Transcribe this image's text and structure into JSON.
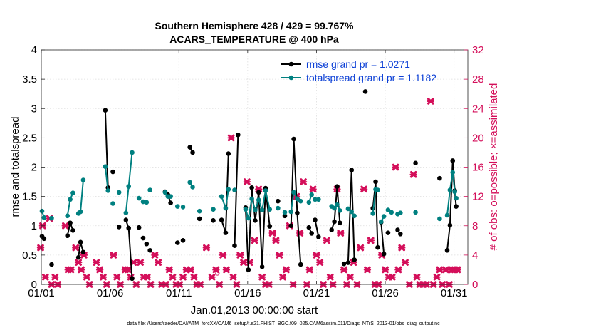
{
  "chart_data": {
    "type": "line",
    "title": "Southern Hemisphere 428 / 429 = 99.767%",
    "subtitle": "ACARS_TEMPERATURE @ 400 hPa",
    "xlabel": "Jan.01,2013 00:00:00 start",
    "ylabel_left": "rmse and totalspread",
    "ylabel_right": "# of obs: o=possible; ×=assimilated",
    "xlim": [
      1,
      32
    ],
    "ylim_left": [
      0,
      4
    ],
    "ylim_right": [
      0,
      32
    ],
    "x_ticks": [
      1,
      6,
      11,
      16,
      21,
      26,
      31
    ],
    "x_tick_labels": [
      "01/01",
      "01/06",
      "01/11",
      "01/16",
      "01/21",
      "01/26",
      "01/31"
    ],
    "y_ticks_left": [
      0,
      0.5,
      1,
      1.5,
      2,
      2.5,
      3,
      3.5,
      4
    ],
    "y_tick_labels_left": [
      "0",
      "0.5",
      "1",
      "1.5",
      "2",
      "2.5",
      "3",
      "3.5",
      "4"
    ],
    "y_ticks_right": [
      0,
      4,
      8,
      12,
      16,
      20,
      24,
      28,
      32
    ],
    "y_tick_labels_right": [
      "0",
      "4",
      "8",
      "12",
      "16",
      "20",
      "24",
      "28",
      "32"
    ],
    "colors": {
      "rmse": "#000000",
      "spread": "#008080",
      "obs": "#d40f5a",
      "legend_text": "#0b3fd6"
    },
    "series": [
      {
        "name": "rmse grand pr = 1.0271",
        "segments": [
          [
            [
              1.05,
              0.82
            ],
            [
              1.2,
              0.78
            ]
          ],
          [
            [
              1.75,
              0.34
            ]
          ],
          [
            [
              2.9,
              0.83
            ],
            [
              3.1,
              1.05
            ],
            [
              3.3,
              0.92
            ]
          ],
          [
            [
              3.7,
              0.46
            ],
            [
              3.85,
              0.72
            ],
            [
              4.05,
              0.55
            ]
          ],
          [
            [
              5.65,
              2.97
            ],
            [
              5.85,
              1.65
            ]
          ],
          [
            [
              6.2,
              1.92
            ]
          ],
          [
            [
              6.65,
              0.98
            ]
          ],
          [
            [
              7.15,
              1.1
            ],
            [
              7.35,
              0.96
            ],
            [
              7.6,
              0.1
            ]
          ],
          [
            [
              8.1,
              0.97
            ]
          ],
          [
            [
              8.4,
              0.79
            ]
          ],
          [
            [
              8.65,
              0.69
            ]
          ],
          [
            [
              8.9,
              0.58
            ]
          ],
          [
            [
              10.0,
              1.58
            ],
            [
              10.2,
              1.53
            ],
            [
              10.4,
              1.39
            ]
          ],
          [
            [
              10.9,
              0.71
            ]
          ],
          [
            [
              11.3,
              0.75
            ]
          ],
          [
            [
              11.8,
              2.34
            ],
            [
              12.0,
              2.25
            ]
          ],
          [
            [
              12.5,
              1.12
            ]
          ],
          [
            [
              13.5,
              1.09
            ]
          ],
          [
            [
              14.1,
              1.1
            ],
            [
              14.4,
              0.88
            ],
            [
              14.6,
              2.23
            ]
          ],
          [
            [
              15.05,
              0.66
            ],
            [
              15.3,
              2.55
            ]
          ],
          [
            [
              15.85,
              1.31
            ],
            [
              16.05,
              0.25
            ],
            [
              16.3,
              1.65
            ],
            [
              16.55,
              1.09
            ],
            [
              16.8,
              1.57
            ],
            [
              17.05,
              0.3
            ],
            [
              17.3,
              1.64
            ],
            [
              17.6,
              0.99
            ]
          ],
          [
            [
              18.2,
              1.42
            ]
          ],
          [
            [
              18.7,
              1.17
            ]
          ],
          [
            [
              19.15,
              1.0
            ],
            [
              19.35,
              2.48
            ],
            [
              19.6,
              1.22
            ],
            [
              19.85,
              0.34
            ]
          ],
          [
            [
              20.45,
              0.97
            ],
            [
              20.65,
              0.87
            ]
          ],
          [
            [
              20.9,
              1.1
            ],
            [
              21.15,
              0.81
            ]
          ],
          [
            [
              22.1,
              0.93
            ],
            [
              22.3,
              1.07
            ],
            [
              22.5,
              1.67
            ],
            [
              22.7,
              1.05
            ]
          ],
          [
            [
              23.0,
              0.35
            ]
          ],
          [
            [
              23.3,
              0.37
            ],
            [
              23.55,
              1.95
            ],
            [
              23.75,
              0.42
            ]
          ],
          [
            [
              24.55,
              3.29
            ]
          ],
          [
            [
              25.1,
              1.3
            ],
            [
              25.3,
              1.75
            ],
            [
              25.45,
              0.63
            ]
          ],
          [
            [
              25.7,
              1.06
            ],
            [
              25.9,
              0.52
            ]
          ],
          [
            [
              26.2,
              0.88
            ]
          ],
          [
            [
              26.9,
              0.93
            ],
            [
              27.1,
              0.86
            ]
          ],
          [
            [
              28.2,
              2.07
            ]
          ],
          [
            [
              29.95,
              1.81
            ]
          ],
          [
            [
              30.5,
              0.58
            ],
            [
              30.7,
              1.01
            ],
            [
              30.9,
              2.11
            ],
            [
              31.05,
              1.6
            ],
            [
              31.15,
              1.33
            ]
          ]
        ]
      },
      {
        "name": "totalspread grand pr = 1.1182",
        "segments": [
          [
            [
              1.05,
              1.25
            ],
            [
              1.2,
              1.14
            ]
          ],
          [
            [
              1.75,
              1.13
            ]
          ],
          [
            [
              2.9,
              1.17
            ],
            [
              3.1,
              1.45
            ],
            [
              3.3,
              1.56
            ]
          ],
          [
            [
              3.7,
              1.21
            ],
            [
              3.85,
              1.24
            ],
            [
              4.05,
              1.78
            ]
          ],
          [
            [
              5.65,
              2.01
            ],
            [
              5.85,
              1.6
            ]
          ],
          [
            [
              6.2,
              1.38
            ]
          ],
          [
            [
              6.65,
              1.57
            ]
          ],
          [
            [
              7.15,
              1.22
            ],
            [
              7.35,
              1.67
            ],
            [
              7.6,
              2.25
            ]
          ],
          [
            [
              8.1,
              1.47
            ]
          ],
          [
            [
              8.4,
              1.41
            ]
          ],
          [
            [
              8.65,
              1.4
            ]
          ],
          [
            [
              8.9,
              1.61
            ]
          ],
          [
            [
              10.0,
              1.57
            ],
            [
              10.2,
              1.5
            ],
            [
              10.4,
              1.5
            ]
          ],
          [
            [
              10.9,
              1.33
            ]
          ],
          [
            [
              11.3,
              1.32
            ]
          ],
          [
            [
              11.8,
              1.74
            ],
            [
              12.0,
              1.66
            ]
          ],
          [
            [
              12.5,
              1.25
            ]
          ],
          [
            [
              13.5,
              1.28
            ]
          ],
          [
            [
              14.1,
              1.5
            ],
            [
              14.4,
              1.3
            ],
            [
              14.6,
              1.62
            ]
          ],
          [
            [
              15.05,
              1.61
            ]
          ],
          [
            [
              15.85,
              1.28
            ],
            [
              16.05,
              1.13
            ],
            [
              16.3,
              1.46
            ],
            [
              16.55,
              1.27
            ],
            [
              16.8,
              1.44
            ],
            [
              17.05,
              1.27
            ],
            [
              17.3,
              1.6
            ],
            [
              17.6,
              1.28
            ]
          ],
          [
            [
              18.2,
              1.3
            ]
          ],
          [
            [
              18.7,
              1.23
            ]
          ],
          [
            [
              19.15,
              1.24
            ],
            [
              19.35,
              1.57
            ],
            [
              19.6,
              1.46
            ],
            [
              19.85,
              1.42
            ]
          ],
          [
            [
              20.45,
              1.4
            ],
            [
              20.65,
              1.53
            ]
          ],
          [
            [
              20.9,
              1.45
            ],
            [
              21.15,
              1.45
            ]
          ],
          [
            [
              22.1,
              1.33
            ],
            [
              22.3,
              1.3
            ],
            [
              22.5,
              1.36
            ],
            [
              22.7,
              1.26
            ]
          ],
          [
            [
              23.3,
              1.29
            ],
            [
              23.55,
              1.24
            ],
            [
              23.75,
              1.17
            ]
          ],
          [
            [
              25.1,
              1.21
            ],
            [
              25.3,
              1.62
            ],
            [
              25.45,
              1.61
            ]
          ],
          [
            [
              25.7,
              1.07
            ],
            [
              25.9,
              1.16
            ]
          ],
          [
            [
              26.2,
              1.27
            ],
            [
              26.45,
              1.23
            ]
          ],
          [
            [
              26.9,
              1.2
            ],
            [
              27.1,
              1.22
            ]
          ],
          [
            [
              28.2,
              1.23
            ]
          ],
          [
            [
              29.95,
              1.12
            ]
          ],
          [
            [
              30.5,
              1.18
            ],
            [
              30.7,
              1.61
            ],
            [
              30.9,
              1.91
            ],
            [
              31.05,
              1.58
            ],
            [
              31.15,
              1.47
            ]
          ]
        ]
      }
    ],
    "obs_assimilated": [
      [
        0.95,
        5
      ],
      [
        1.1,
        8
      ],
      [
        1.3,
        1
      ],
      [
        1.6,
        9
      ],
      [
        1.75,
        0
      ],
      [
        2.0,
        1
      ],
      [
        2.2,
        0
      ],
      [
        2.75,
        8
      ],
      [
        2.95,
        2
      ],
      [
        3.15,
        2
      ],
      [
        3.5,
        5
      ],
      [
        3.7,
        3
      ],
      [
        3.9,
        2
      ],
      [
        4.1,
        4
      ],
      [
        4.3,
        1
      ],
      [
        4.5,
        0
      ],
      [
        5.0,
        3
      ],
      [
        5.25,
        2
      ],
      [
        5.5,
        1
      ],
      [
        5.75,
        0
      ],
      [
        6.25,
        4
      ],
      [
        6.5,
        1
      ],
      [
        6.75,
        0
      ],
      [
        7.1,
        2
      ],
      [
        7.3,
        2
      ],
      [
        7.5,
        1
      ],
      [
        7.7,
        3
      ],
      [
        7.9,
        0
      ],
      [
        8.2,
        3
      ],
      [
        8.45,
        1
      ],
      [
        8.7,
        1
      ],
      [
        8.95,
        0
      ],
      [
        9.25,
        4
      ],
      [
        9.5,
        3
      ],
      [
        9.75,
        0
      ],
      [
        10.05,
        0
      ],
      [
        10.3,
        2
      ],
      [
        10.55,
        1
      ],
      [
        10.8,
        0
      ],
      [
        11.05,
        0
      ],
      [
        11.3,
        1
      ],
      [
        11.55,
        2
      ],
      [
        11.85,
        2
      ],
      [
        12.1,
        1
      ],
      [
        12.3,
        0
      ],
      [
        12.55,
        0
      ],
      [
        13.0,
        5
      ],
      [
        13.4,
        1
      ],
      [
        13.7,
        2
      ],
      [
        13.95,
        0
      ],
      [
        14.2,
        4
      ],
      [
        14.45,
        2
      ],
      [
        14.8,
        20
      ],
      [
        14.95,
        1
      ],
      [
        15.2,
        0
      ],
      [
        15.45,
        4
      ],
      [
        15.7,
        3
      ],
      [
        15.95,
        14
      ],
      [
        16.15,
        3
      ],
      [
        16.5,
        6
      ],
      [
        16.8,
        13
      ],
      [
        17.05,
        1
      ],
      [
        17.3,
        0
      ],
      [
        17.55,
        0
      ],
      [
        17.8,
        7
      ],
      [
        18.05,
        6
      ],
      [
        18.3,
        4
      ],
      [
        18.55,
        1
      ],
      [
        18.8,
        2
      ],
      [
        19.05,
        8
      ],
      [
        19.3,
        0
      ],
      [
        19.55,
        12
      ],
      [
        19.8,
        7
      ],
      [
        20.05,
        14
      ],
      [
        20.3,
        0
      ],
      [
        20.5,
        2
      ],
      [
        20.75,
        13
      ],
      [
        21.0,
        4
      ],
      [
        21.25,
        3
      ],
      [
        21.5,
        0
      ],
      [
        21.75,
        6
      ],
      [
        22.0,
        1
      ],
      [
        22.2,
        0
      ],
      [
        22.5,
        13
      ],
      [
        22.75,
        7
      ],
      [
        23.0,
        2
      ],
      [
        23.2,
        0
      ],
      [
        23.45,
        1
      ],
      [
        23.7,
        3
      ],
      [
        23.95,
        0
      ],
      [
        24.2,
        5
      ],
      [
        24.45,
        13
      ],
      [
        24.7,
        2
      ],
      [
        24.95,
        6
      ],
      [
        25.25,
        0
      ],
      [
        25.5,
        0
      ],
      [
        25.75,
        4
      ],
      [
        26.0,
        2
      ],
      [
        26.25,
        1
      ],
      [
        26.5,
        1
      ],
      [
        26.75,
        16
      ],
      [
        26.95,
        2
      ],
      [
        27.2,
        5
      ],
      [
        27.45,
        3
      ],
      [
        27.75,
        0
      ],
      [
        28.05,
        15
      ],
      [
        28.3,
        1
      ],
      [
        28.5,
        0
      ],
      [
        28.75,
        0
      ],
      [
        29.0,
        0
      ],
      [
        29.3,
        25
      ],
      [
        29.5,
        0
      ],
      [
        29.75,
        1
      ],
      [
        29.95,
        2
      ],
      [
        30.15,
        0
      ],
      [
        30.4,
        2
      ],
      [
        30.65,
        0
      ],
      [
        30.85,
        2
      ],
      [
        31.05,
        2
      ],
      [
        31.25,
        2
      ]
    ],
    "obs_possible": [
      [
        13.8,
        1.5
      ]
    ],
    "legend_position": "top-right",
    "footer": "data file: /Users/raeder/DAI/ATM_forcXX/CAM6_setup/f.e21.FHIST_BGC.f09_025.CAM6assim.011/Diags_NTrS_2013-01/obs_diag_output.nc"
  }
}
